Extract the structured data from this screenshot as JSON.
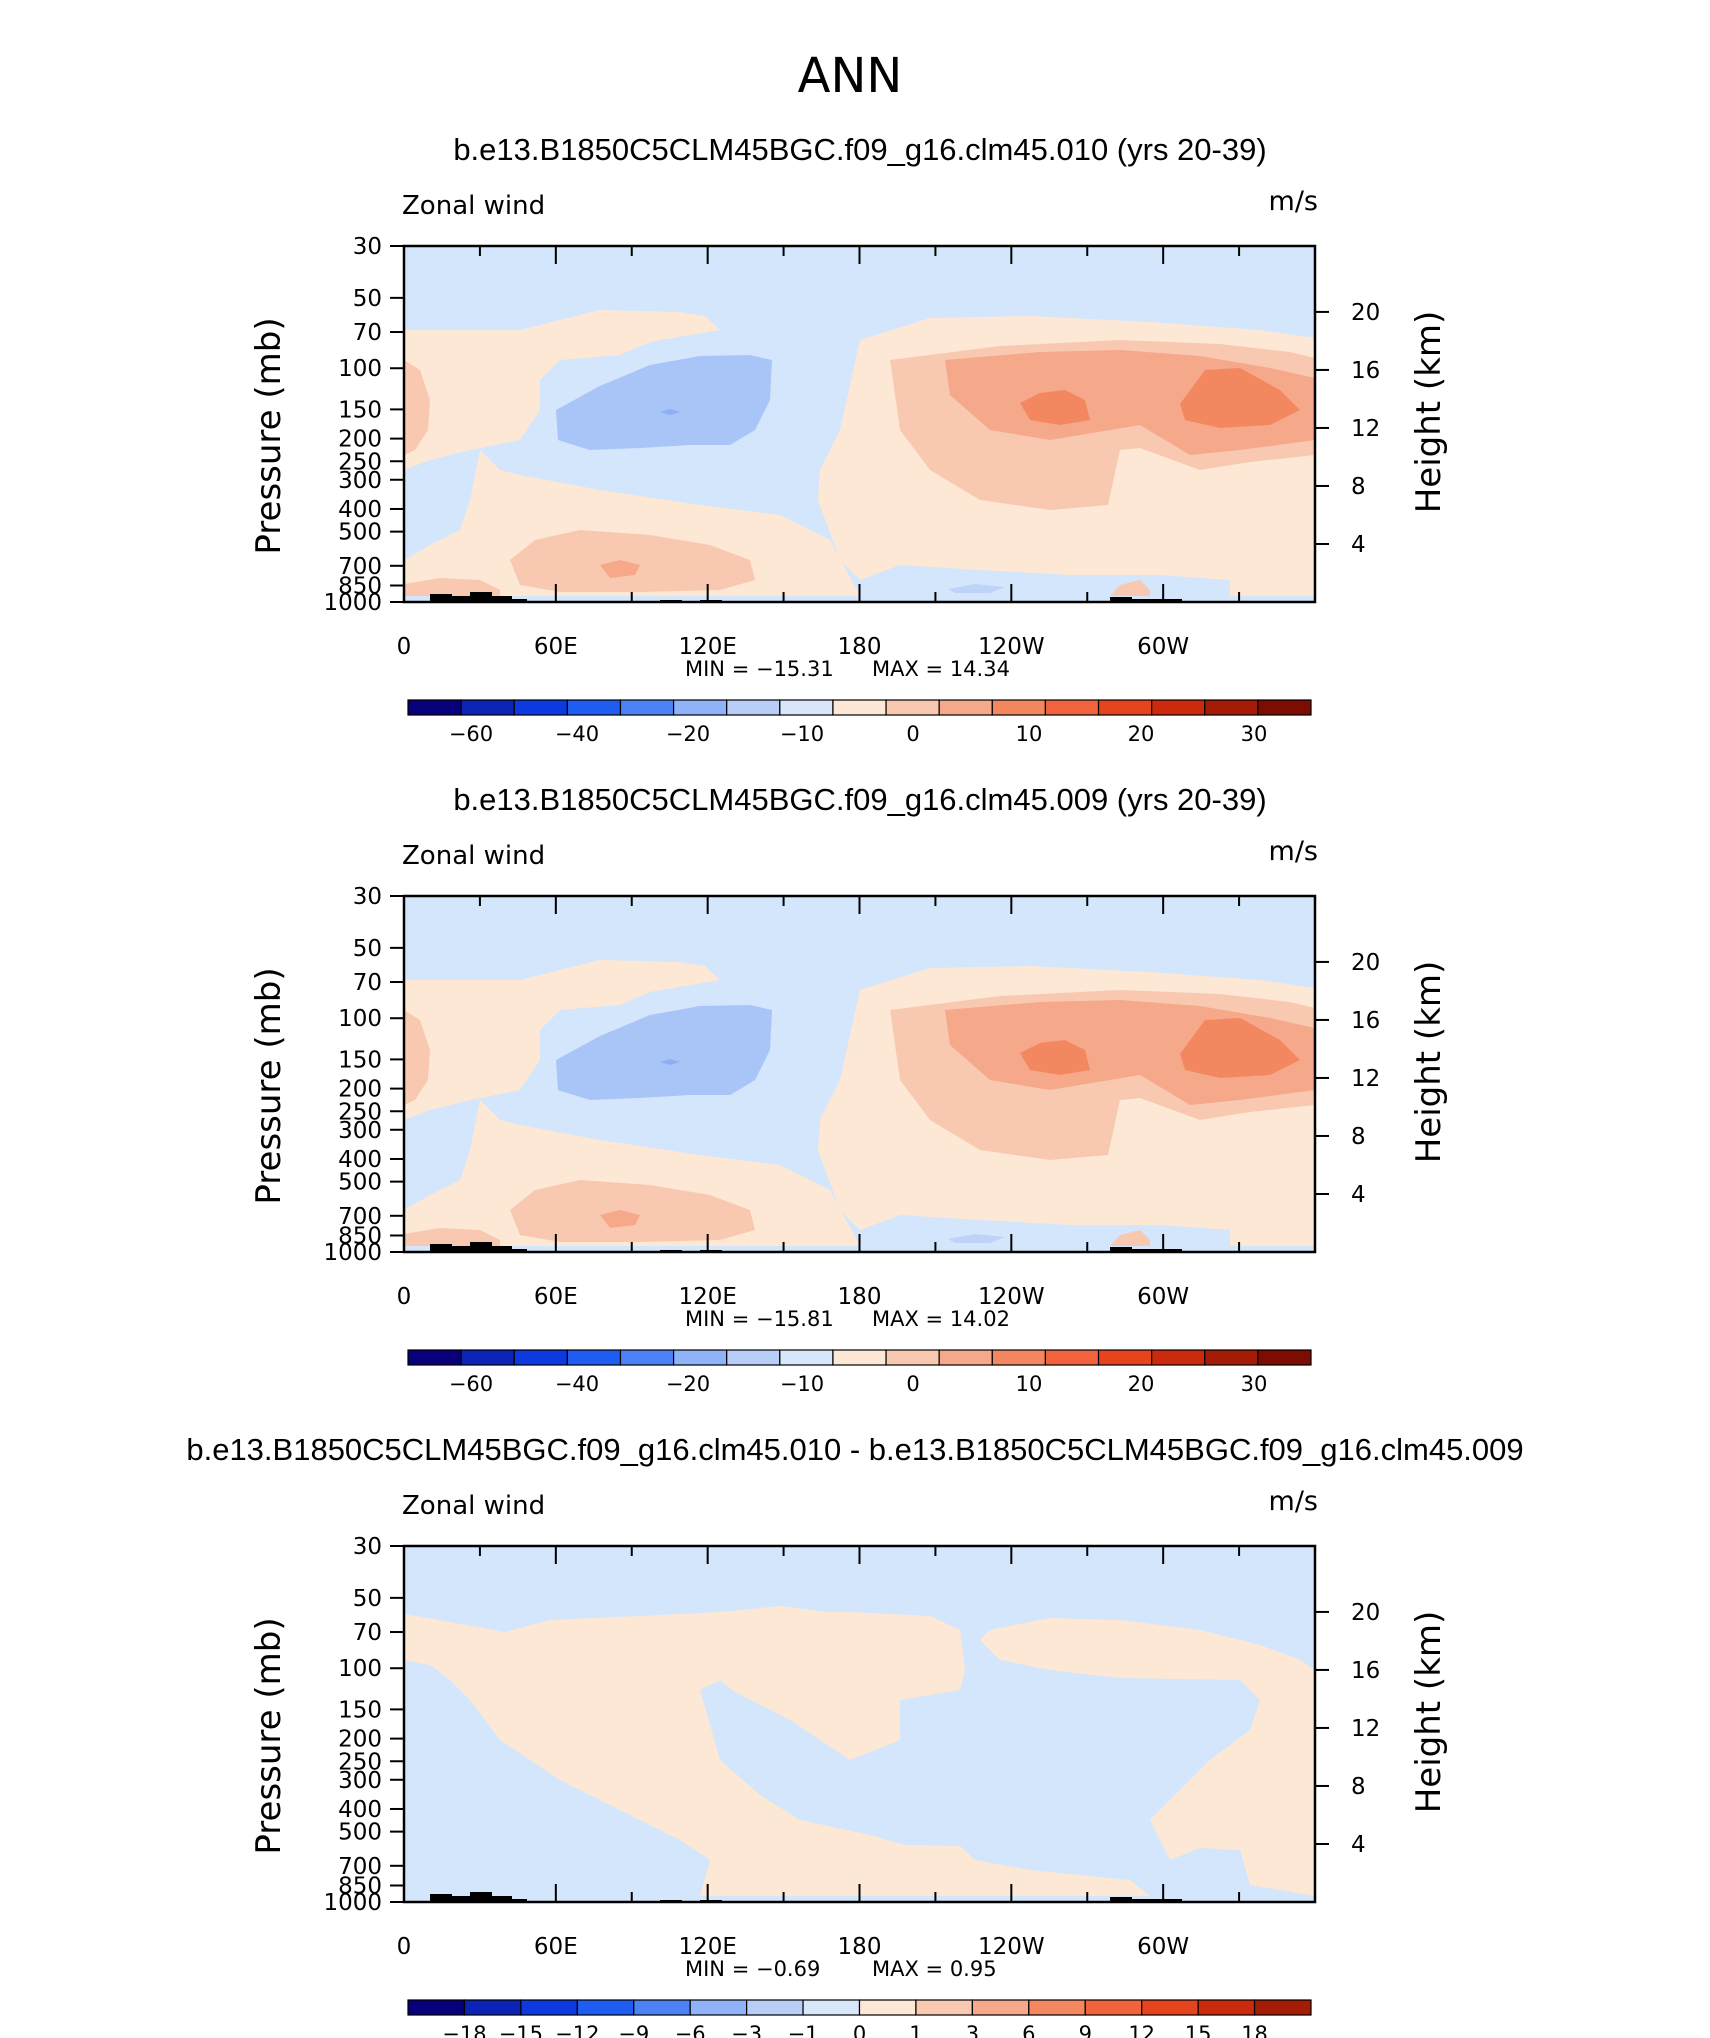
{
  "chart_data": {
    "type": "heatmap",
    "title": "ANN",
    "panels": [
      {
        "title": "b.e13.B1850C5CLM45BGC.f09_g16.clm45.010 (yrs 20-39)",
        "left_label": "Zonal wind",
        "units": "m/s",
        "ylabel": "Pressure (mb)",
        "ylabel_right": "Height (km)",
        "y_ticks": [
          "30",
          "50",
          "70",
          "100",
          "150",
          "200",
          "250",
          "300",
          "400",
          "500",
          "700",
          "850",
          "1000"
        ],
        "y_ticks_right": [
          "20",
          "16",
          "12",
          "8",
          "4"
        ],
        "x_ticks": [
          "0",
          "60E",
          "120E",
          "180",
          "120W",
          "60W"
        ],
        "min_text": "MIN = -15.31",
        "max_text": "MAX = 14.34",
        "min": -15.31,
        "max": 14.34,
        "colorbar_labels": [
          "-60",
          "-40",
          "-20",
          "-10",
          "0",
          "10",
          "20",
          "30"
        ],
        "colorbar_colors": [
          "#08007a",
          "#0b24b6",
          "#0c3ae0",
          "#1f5cf2",
          "#4c82f5",
          "#8fb2f8",
          "#b9cdf9",
          "#d9e7fb",
          "#fde8d6",
          "#f8c9b0",
          "#f5a88a",
          "#f38860",
          "#f1633c",
          "#e6441d",
          "#cc2a0c",
          "#a51c06",
          "#7d0c02"
        ]
      },
      {
        "title": "b.e13.B1850C5CLM45BGC.f09_g16.clm45.009 (yrs 20-39)",
        "left_label": "Zonal wind",
        "units": "m/s",
        "ylabel": "Pressure (mb)",
        "ylabel_right": "Height (km)",
        "y_ticks": [
          "30",
          "50",
          "70",
          "100",
          "150",
          "200",
          "250",
          "300",
          "400",
          "500",
          "700",
          "850",
          "1000"
        ],
        "y_ticks_right": [
          "20",
          "16",
          "12",
          "8",
          "4"
        ],
        "x_ticks": [
          "0",
          "60E",
          "120E",
          "180",
          "120W",
          "60W"
        ],
        "min_text": "MIN = -15.81",
        "max_text": "MAX = 14.02",
        "min": -15.81,
        "max": 14.02,
        "colorbar_labels": [
          "-60",
          "-40",
          "-20",
          "-10",
          "0",
          "10",
          "20",
          "30"
        ],
        "colorbar_colors": [
          "#08007a",
          "#0b24b6",
          "#0c3ae0",
          "#1f5cf2",
          "#4c82f5",
          "#8fb2f8",
          "#b9cdf9",
          "#d9e7fb",
          "#fde8d6",
          "#f8c9b0",
          "#f5a88a",
          "#f38860",
          "#f1633c",
          "#e6441d",
          "#cc2a0c",
          "#a51c06",
          "#7d0c02"
        ]
      },
      {
        "title": "b.e13.B1850C5CLM45BGC.f09_g16.clm45.010 - b.e13.B1850C5CLM45BGC.f09_g16.clm45.009",
        "left_label": "Zonal wind",
        "units": "m/s",
        "ylabel": "Pressure (mb)",
        "ylabel_right": "Height (km)",
        "y_ticks": [
          "30",
          "50",
          "70",
          "100",
          "150",
          "200",
          "250",
          "300",
          "400",
          "500",
          "700",
          "850",
          "1000"
        ],
        "y_ticks_right": [
          "20",
          "16",
          "12",
          "8",
          "4"
        ],
        "x_ticks": [
          "0",
          "60E",
          "120E",
          "180",
          "120W",
          "60W"
        ],
        "min_text": "MIN = -0.69",
        "max_text": "MAX = 0.95",
        "min": -0.69,
        "max": 0.95,
        "colorbar_labels": [
          "-18",
          "-15",
          "-12",
          "-9",
          "-6",
          "-3",
          "-1",
          "0",
          "1",
          "3",
          "6",
          "9",
          "12",
          "15",
          "18"
        ],
        "colorbar_colors": [
          "#08007a",
          "#0b24b6",
          "#0c3ae0",
          "#1f5cf2",
          "#4c82f5",
          "#8fb2f8",
          "#b9cdf9",
          "#d9e7fb",
          "#fde8d6",
          "#f8c9b0",
          "#f5a88a",
          "#f38860",
          "#f1633c",
          "#e6441d",
          "#cc2a0c",
          "#a51c06"
        ]
      }
    ]
  }
}
